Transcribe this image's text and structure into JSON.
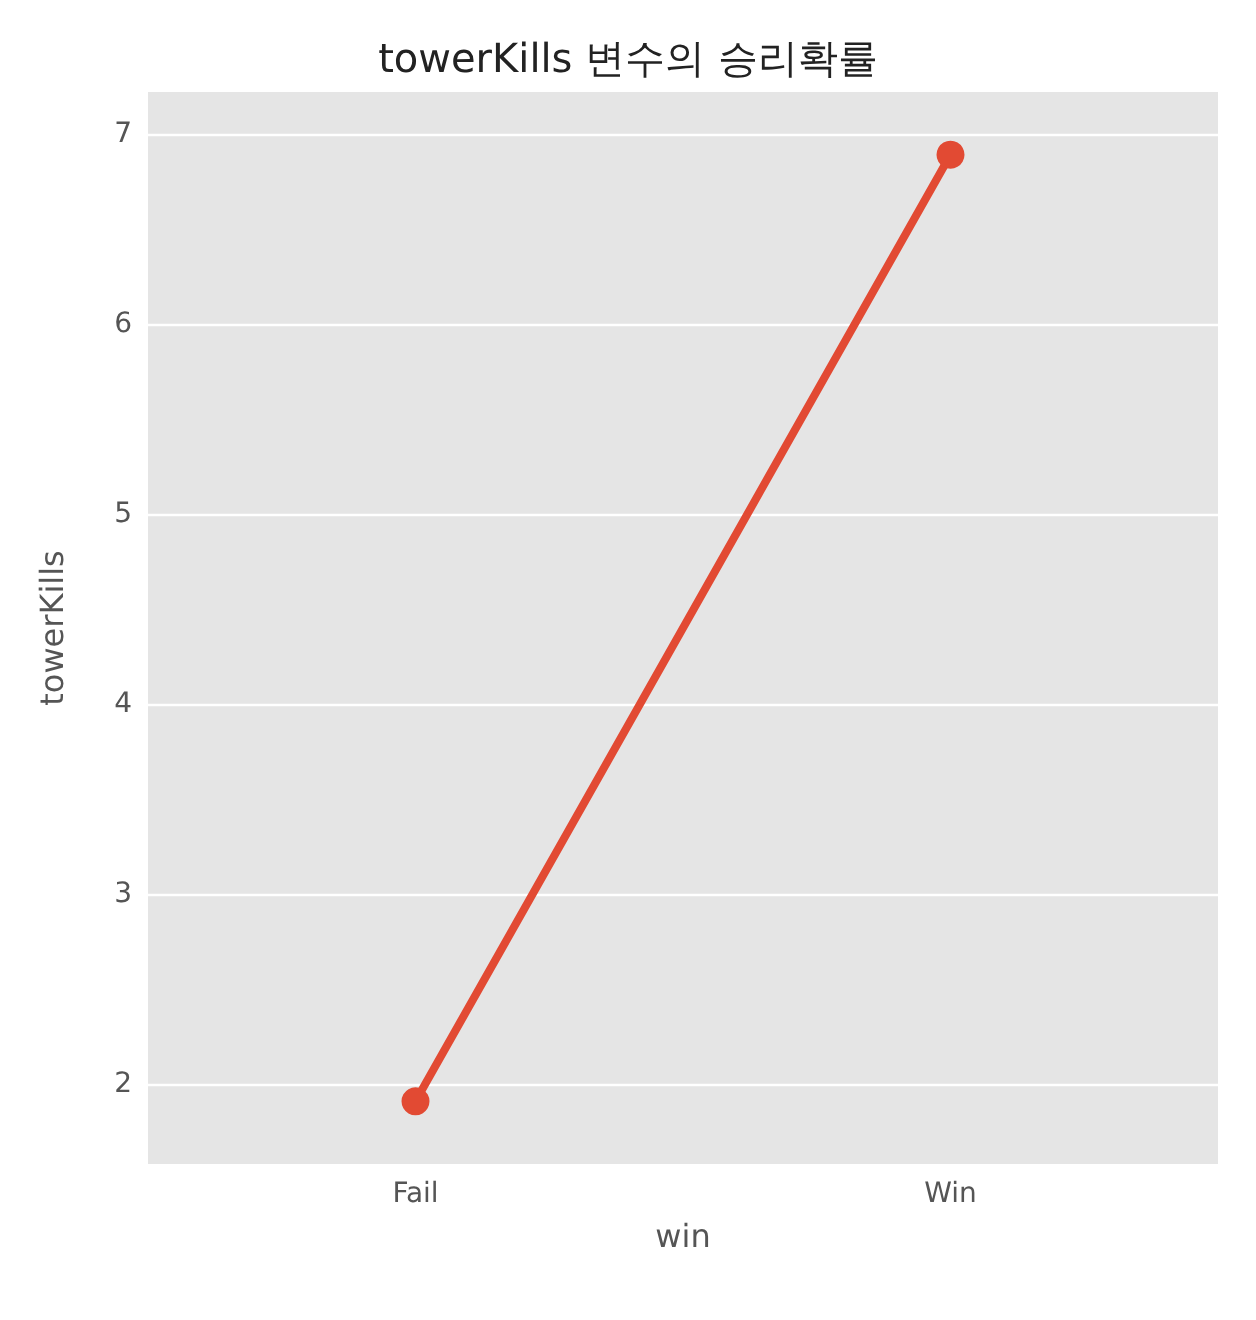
{
  "chart_data": {
    "type": "line",
    "title": "towerKills 변수의 승리확률",
    "xlabel": "win",
    "ylabel": "towerKills",
    "categories": [
      "Fail",
      "Win"
    ],
    "series": [
      {
        "color": "#e24a33",
        "values": [
          1.91,
          6.89
        ]
      }
    ],
    "ylim": [
      1.58,
      7.22
    ],
    "yticks": [
      2,
      3,
      4,
      5,
      6,
      7
    ],
    "grid": "y",
    "marker": "circle",
    "line_style": "solid"
  }
}
